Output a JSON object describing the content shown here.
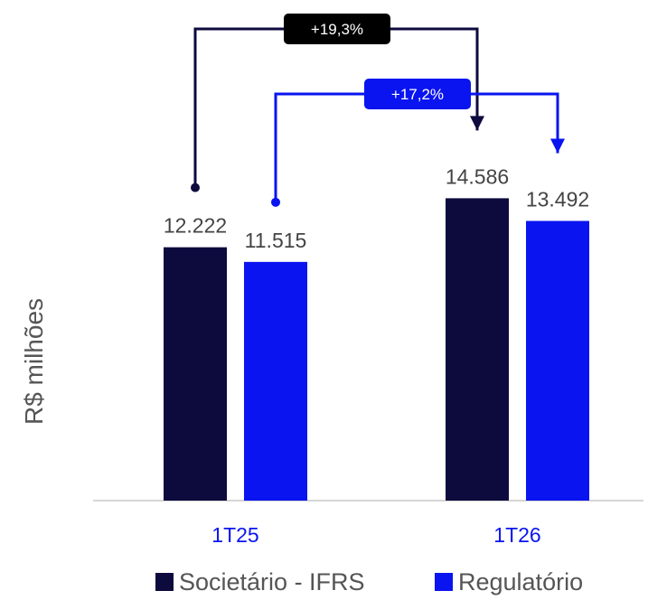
{
  "chart_data": {
    "type": "bar",
    "ylabel": "R$ milhões",
    "categories": [
      "1T25",
      "1T26"
    ],
    "series": [
      {
        "name": "Societário - IFRS",
        "color": "#0d0a3d",
        "values": [
          12222,
          14586
        ]
      },
      {
        "name": "Regulatório",
        "color": "#0a14f0",
        "values": [
          11515,
          13492
        ]
      }
    ],
    "value_labels": [
      [
        "12.222",
        "14.586"
      ],
      [
        "11.515",
        "13.492"
      ]
    ],
    "ylim": [
      0,
      16000
    ],
    "grid": false,
    "legend_position": "bottom",
    "annotations": [
      {
        "text": "+19,3%",
        "series": 0,
        "color": "#000000"
      },
      {
        "text": "+17,2%",
        "series": 1,
        "color": "#0a14f0"
      }
    ],
    "category_label_color": "#0a14f0"
  }
}
